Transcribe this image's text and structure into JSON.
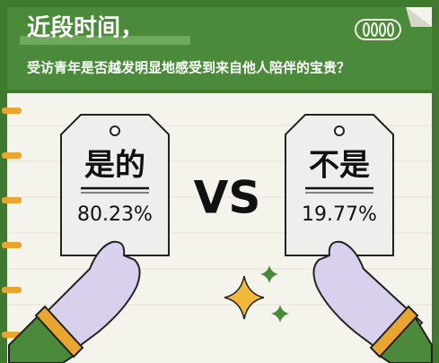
{
  "header": {
    "title": "近段时间，",
    "question": "受访青年是否越发明显地感受到来自他人陪伴的宝贵？"
  },
  "options": [
    {
      "label": "是的",
      "value": "80.23%"
    },
    {
      "label": "不是",
      "value": "19.77%"
    }
  ],
  "versus": "VS"
}
